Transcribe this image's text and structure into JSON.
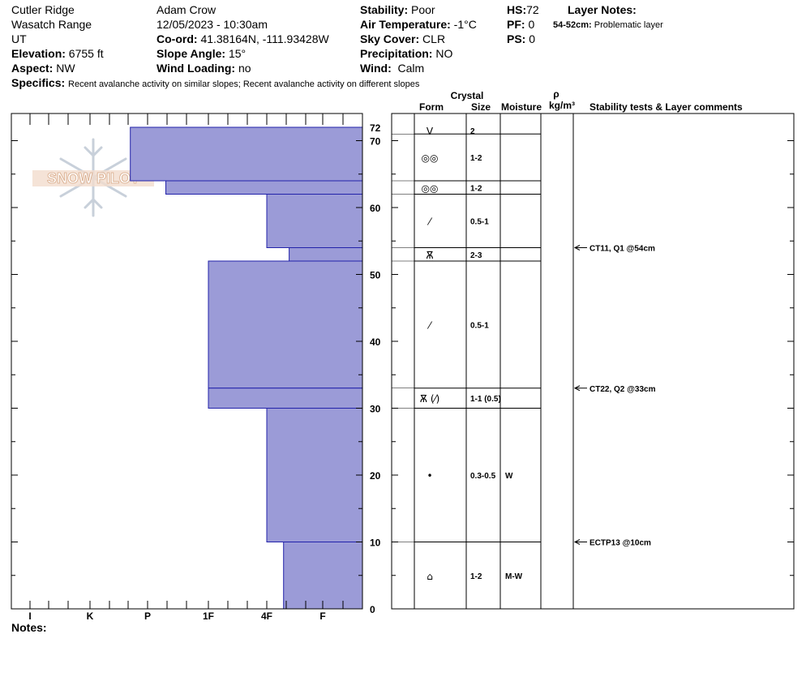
{
  "header": {
    "location": "Cutler Ridge",
    "range": "Wasatch Range",
    "state": "UT",
    "elevation_label": "Elevation:",
    "elevation": "6755 ft",
    "aspect_label": "Aspect:",
    "aspect": "NW",
    "observer": "Adam Crow",
    "datetime": "12/05/2023 - 10:30am",
    "coord_label": "Co-ord:",
    "coord": "41.38164N, -111.93428W",
    "slope_label": "Slope Angle:",
    "slope": "15°",
    "wind_loading_label": "Wind Loading:",
    "wind_loading": "no",
    "stability_label": "Stability:",
    "stability": "Poor",
    "air_temp_label": "Air Temperature:",
    "air_temp": "-1°C",
    "sky_label": "Sky Cover:",
    "sky": "CLR",
    "precip_label": "Precipitation:",
    "precip": "NO",
    "wind_label": "Wind:",
    "wind": "Calm",
    "hs_label": "HS:",
    "hs": "72",
    "pf_label": "PF:",
    "pf": "0",
    "ps_label": "PS:",
    "ps": "0",
    "layer_notes_label": "Layer Notes:",
    "layer_note_range": "54-52cm:",
    "layer_note_text": "Problematic layer",
    "specifics_label": "Specifics:",
    "specifics": "Recent avalanche activity on similar slopes; Recent avalanche activity on different slopes"
  },
  "logo_text": "SNOW PILOT",
  "columns": {
    "crystal": "Crystal",
    "form": "Form",
    "size": "Size",
    "moisture": "Moisture",
    "rho": "ρ",
    "density_unit": "kg/m³",
    "stability_comments": "Stability tests & Layer comments"
  },
  "colors": {
    "hardness_fill": "#9b9bd7",
    "hardness_edge": "#2222aa"
  },
  "hardness_labels": [
    "I",
    "K",
    "P",
    "1F",
    "4F",
    "F"
  ],
  "depth_labels": [
    "72",
    "70",
    "60",
    "50",
    "40",
    "30",
    "20",
    "10",
    "0"
  ],
  "chart_data": {
    "type": "bar",
    "title": "",
    "xlabel": "",
    "ylabel": "",
    "ylim": [
      0,
      72
    ],
    "hardness_scale": [
      "I",
      "K",
      "P",
      "1F",
      "4F",
      "F"
    ],
    "layers": [
      {
        "top": 72,
        "bottom": 64,
        "hardness": 3.3
      },
      {
        "top": 64,
        "bottom": 62,
        "hardness": 2.7
      },
      {
        "top": 62,
        "bottom": 54,
        "hardness": 1.0
      },
      {
        "top": 54,
        "bottom": 52,
        "hardness": 0.6
      },
      {
        "top": 52,
        "bottom": 33,
        "hardness": 2.0
      },
      {
        "top": 33,
        "bottom": 30,
        "hardness": 2.0
      },
      {
        "top": 30,
        "bottom": 10,
        "hardness": 1.0
      },
      {
        "top": 10,
        "bottom": 0,
        "hardness": 0.7
      }
    ]
  },
  "layer_table": [
    {
      "top": 72,
      "bottom": 71,
      "form_icon": "surface-hoar-icon",
      "form": "V",
      "size": "2",
      "moisture": ""
    },
    {
      "top": 71,
      "bottom": 64,
      "form_icon": "melt-forms-icon",
      "form": "◎◎",
      "size": "1-2",
      "moisture": ""
    },
    {
      "top": 64,
      "bottom": 62,
      "form_icon": "melt-forms-icon",
      "form": "◎◎",
      "size": "1-2",
      "moisture": ""
    },
    {
      "top": 62,
      "bottom": 54,
      "form_icon": "decomposing-icon",
      "form": "⁄",
      "size": "0.5-1",
      "moisture": ""
    },
    {
      "top": 54,
      "bottom": 52,
      "form_icon": "depth-hoar-icon",
      "form": "Ѫ",
      "size": "2-3",
      "moisture": ""
    },
    {
      "top": 52,
      "bottom": 33,
      "form_icon": "decomposing-icon",
      "form": "⁄",
      "size": "0.5-1",
      "moisture": ""
    },
    {
      "top": 33,
      "bottom": 30,
      "form_icon": "depth-hoar-icon",
      "form": "Ѫ (⁄)",
      "size": "1-1 (0.5)",
      "moisture": ""
    },
    {
      "top": 30,
      "bottom": 10,
      "form_icon": "rounded-icon",
      "form": "•",
      "size": "0.3-0.5",
      "moisture": "W"
    },
    {
      "top": 10,
      "bottom": 0,
      "form_icon": "faceted-rounded-icon",
      "form": "⌂",
      "size": "1-2",
      "moisture": "M-W"
    }
  ],
  "tests": [
    {
      "depth": 54,
      "text": "CT11, Q1 @54cm"
    },
    {
      "depth": 33,
      "text": "CT22, Q2 @33cm"
    },
    {
      "depth": 10,
      "text": "ECTP13 @10cm"
    }
  ],
  "notes_label": "Notes:"
}
